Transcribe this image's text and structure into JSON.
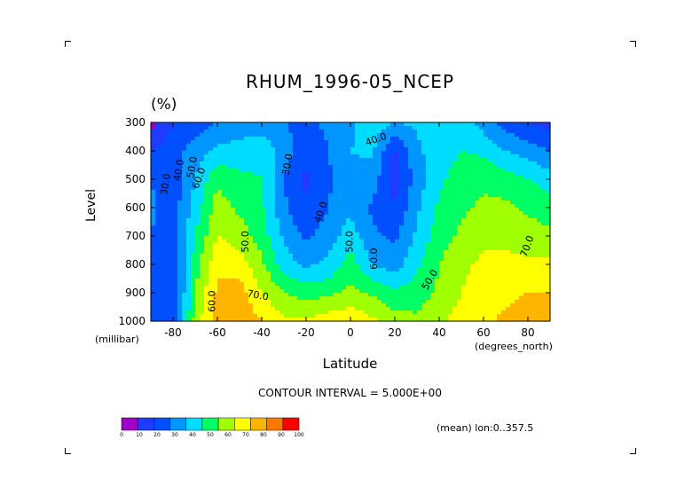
{
  "chart_data": {
    "type": "heatmap",
    "title": "RHUM_1996-05_NCEP",
    "units": "(%)",
    "xlabel": "Latitude",
    "ylabel": "Level",
    "x_unit": "(degrees_north)",
    "y_unit": "(millibar)",
    "xlim": [
      -90,
      90
    ],
    "ylim": [
      1000,
      300
    ],
    "x_ticks": [
      -80,
      -60,
      -40,
      -20,
      0,
      20,
      40,
      60,
      80
    ],
    "y_ticks": [
      300,
      400,
      500,
      600,
      700,
      800,
      900,
      1000
    ],
    "x_tick_labels": [
      "-80",
      "-60",
      "-40",
      "-20",
      "0",
      "20",
      "40",
      "60",
      "80"
    ],
    "y_tick_labels": [
      "300",
      "400",
      "500",
      "600",
      "700",
      "800",
      "900",
      "1000"
    ],
    "levels": [
      300,
      400,
      500,
      600,
      700,
      800,
      900,
      1000
    ],
    "lats": [
      -90,
      -80,
      -70,
      -60,
      -50,
      -40,
      -30,
      -20,
      -10,
      0,
      10,
      20,
      30,
      40,
      50,
      60,
      70,
      80,
      90
    ],
    "values": [
      [
        5,
        20,
        25,
        30,
        32,
        34,
        30,
        28,
        32,
        38,
        45,
        40,
        42,
        45,
        48,
        35,
        25,
        20,
        15
      ],
      [
        20,
        25,
        35,
        42,
        45,
        48,
        35,
        22,
        30,
        40,
        42,
        18,
        38,
        45,
        50,
        48,
        40,
        35,
        30
      ],
      [
        30,
        22,
        40,
        58,
        52,
        50,
        30,
        18,
        28,
        38,
        35,
        15,
        35,
        48,
        55,
        58,
        55,
        50,
        45
      ],
      [
        32,
        25,
        45,
        65,
        58,
        52,
        32,
        20,
        30,
        38,
        28,
        20,
        38,
        52,
        58,
        62,
        62,
        58,
        55
      ],
      [
        30,
        22,
        50,
        70,
        65,
        55,
        38,
        28,
        35,
        45,
        32,
        28,
        42,
        55,
        62,
        68,
        68,
        65,
        62
      ],
      [
        28,
        22,
        55,
        78,
        75,
        62,
        45,
        38,
        42,
        55,
        40,
        35,
        48,
        60,
        68,
        72,
        72,
        72,
        72
      ],
      [
        25,
        20,
        60,
        82,
        85,
        70,
        60,
        55,
        58,
        62,
        58,
        52,
        55,
        62,
        70,
        75,
        78,
        80,
        80
      ],
      [
        25,
        20,
        65,
        85,
        88,
        80,
        72,
        72,
        75,
        78,
        72,
        65,
        62,
        68,
        74,
        78,
        82,
        85,
        85
      ]
    ],
    "contour_labels": [
      "30.0",
      "40.0",
      "50.0",
      "60.0",
      "30.0",
      "40.0",
      "50.0",
      "40.0",
      "60.0",
      "70.0",
      "50.0",
      "60.0",
      "70.0",
      "50.0"
    ],
    "contour_interval": "CONTOUR INTERVAL = 5.000E+00",
    "colorbar": {
      "ticks": [
        "0",
        "10",
        "20",
        "30",
        "40",
        "50",
        "60",
        "70",
        "80",
        "90",
        "100"
      ],
      "colors": [
        "#a000c8",
        "#1e3cff",
        "#0050ff",
        "#0096ff",
        "#00dcff",
        "#00ff64",
        "#a0ff00",
        "#ffff00",
        "#ffb400",
        "#ff7800",
        "#ff0000"
      ]
    },
    "mean_note": "(mean) lon:0..357.5",
    "grid": false,
    "legend": "none"
  }
}
